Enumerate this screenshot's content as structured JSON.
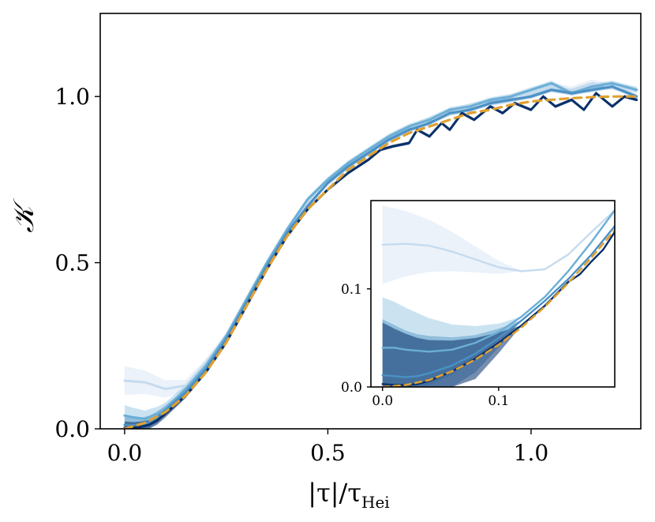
{
  "chart_data": [
    {
      "type": "line",
      "title": "",
      "xlabel": {
        "base": "|τ|/τ",
        "subscript": "Hei"
      },
      "ylabel": "𝒦",
      "xlim": [
        -0.06,
        1.27
      ],
      "ylim": [
        0,
        1.25
      ],
      "xticks": [
        0.0,
        0.5,
        1.0
      ],
      "yticks": [
        0.0,
        0.5,
        1.0
      ],
      "xtick_labels": [
        "0.0",
        "0.5",
        "1.0"
      ],
      "ytick_labels": [
        "0.0",
        "0.5",
        "1.0"
      ],
      "grid": false,
      "legend": "none",
      "series": [
        {
          "color": "#c6dbef",
          "x": [
            0.0,
            0.05,
            0.1,
            0.15,
            0.2,
            0.25,
            0.3,
            0.35,
            0.4,
            0.45,
            0.5,
            0.55,
            0.6,
            0.65,
            0.7,
            0.75,
            0.8,
            0.85,
            0.9,
            0.95,
            1.0,
            1.05,
            1.1,
            1.15,
            1.2,
            1.26
          ],
          "y": [
            0.145,
            0.14,
            0.12,
            0.13,
            0.2,
            0.28,
            0.39,
            0.5,
            0.6,
            0.68,
            0.74,
            0.79,
            0.83,
            0.87,
            0.9,
            0.93,
            0.95,
            0.97,
            0.98,
            0.99,
            1.01,
            1.03,
            1.02,
            1.04,
            1.03,
            1.02
          ]
        },
        {
          "color": "#6baed6",
          "x": [
            0.0,
            0.02,
            0.05,
            0.08,
            0.1,
            0.15,
            0.2,
            0.25,
            0.3,
            0.35,
            0.4,
            0.45,
            0.5,
            0.55,
            0.6,
            0.65,
            0.7,
            0.75,
            0.8,
            0.85,
            0.9,
            0.95,
            1.0,
            1.05,
            1.1,
            1.15,
            1.2,
            1.26
          ],
          "y": [
            0.04,
            0.035,
            0.03,
            0.045,
            0.06,
            0.12,
            0.19,
            0.28,
            0.39,
            0.5,
            0.6,
            0.69,
            0.75,
            0.8,
            0.84,
            0.88,
            0.91,
            0.93,
            0.96,
            0.97,
            0.99,
            1.0,
            1.02,
            1.04,
            1.01,
            1.03,
            1.04,
            1.02
          ]
        },
        {
          "color": "#4a90c4",
          "x": [
            0.0,
            0.02,
            0.04,
            0.06,
            0.08,
            0.1,
            0.15,
            0.2,
            0.25,
            0.3,
            0.35,
            0.4,
            0.45,
            0.5,
            0.55,
            0.6,
            0.65,
            0.7,
            0.75,
            0.8,
            0.85,
            0.9,
            0.95,
            1.0,
            1.05,
            1.1,
            1.15,
            1.2,
            1.26
          ],
          "y": [
            0.012,
            0.01,
            0.012,
            0.02,
            0.035,
            0.055,
            0.11,
            0.18,
            0.27,
            0.38,
            0.49,
            0.59,
            0.67,
            0.74,
            0.79,
            0.83,
            0.87,
            0.9,
            0.92,
            0.95,
            0.96,
            0.98,
            0.99,
            1.0,
            1.02,
            1.01,
            1.02,
            1.03,
            1.0
          ]
        },
        {
          "color": "#08306b",
          "x": [
            0.0,
            0.02,
            0.04,
            0.06,
            0.08,
            0.1,
            0.15,
            0.2,
            0.25,
            0.3,
            0.35,
            0.4,
            0.45,
            0.5,
            0.55,
            0.6,
            0.63,
            0.66,
            0.7,
            0.72,
            0.75,
            0.78,
            0.8,
            0.83,
            0.86,
            0.9,
            0.93,
            0.96,
            1.0,
            1.03,
            1.06,
            1.1,
            1.13,
            1.16,
            1.2,
            1.23,
            1.26
          ],
          "y": [
            0.003,
            0.003,
            0.006,
            0.012,
            0.025,
            0.045,
            0.1,
            0.17,
            0.26,
            0.37,
            0.48,
            0.58,
            0.66,
            0.72,
            0.77,
            0.81,
            0.84,
            0.85,
            0.86,
            0.9,
            0.88,
            0.92,
            0.9,
            0.95,
            0.93,
            0.97,
            0.95,
            0.98,
            0.96,
            1.0,
            0.97,
            0.99,
            0.96,
            1.01,
            0.97,
            1.0,
            0.99
          ]
        },
        {
          "color": "#e0a030",
          "style": "dashed",
          "x": [
            0.0,
            0.05,
            0.1,
            0.15,
            0.2,
            0.25,
            0.3,
            0.35,
            0.4,
            0.45,
            0.5,
            0.55,
            0.6,
            0.65,
            0.7,
            0.75,
            0.8,
            0.85,
            0.9,
            0.95,
            1.0,
            1.05,
            1.1,
            1.15,
            1.2,
            1.26
          ],
          "y": [
            0.0,
            0.018,
            0.05,
            0.1,
            0.17,
            0.26,
            0.37,
            0.48,
            0.58,
            0.66,
            0.72,
            0.78,
            0.82,
            0.86,
            0.89,
            0.91,
            0.93,
            0.95,
            0.96,
            0.975,
            0.985,
            0.99,
            0.995,
            0.998,
            1.0,
            1.0
          ]
        }
      ]
    },
    {
      "type": "line",
      "title": "",
      "xlim": [
        -0.01,
        0.2
      ],
      "ylim": [
        0.0,
        0.19
      ],
      "xticks": [
        0.0,
        0.1
      ],
      "yticks": [
        0.0,
        0.1
      ],
      "xtick_labels": [
        "0.0",
        "0.1"
      ],
      "ytick_labels": [
        "0.0",
        "0.1"
      ],
      "grid": false,
      "legend": "none",
      "series": [
        {
          "color": "#c6dbef",
          "x": [
            0.0,
            0.02,
            0.04,
            0.06,
            0.08,
            0.1,
            0.12,
            0.14,
            0.16,
            0.18,
            0.2
          ],
          "y": [
            0.145,
            0.146,
            0.144,
            0.138,
            0.13,
            0.122,
            0.118,
            0.12,
            0.135,
            0.158,
            0.18
          ]
        },
        {
          "color": "#6baed6",
          "x": [
            0.0,
            0.01,
            0.02,
            0.04,
            0.06,
            0.08,
            0.1,
            0.12,
            0.14,
            0.16,
            0.18,
            0.2
          ],
          "y": [
            0.04,
            0.04,
            0.038,
            0.036,
            0.038,
            0.045,
            0.056,
            0.072,
            0.092,
            0.118,
            0.148,
            0.18
          ]
        },
        {
          "color": "#4a90c4",
          "x": [
            0.0,
            0.01,
            0.02,
            0.03,
            0.04,
            0.06,
            0.08,
            0.1,
            0.12,
            0.14,
            0.16,
            0.18,
            0.2
          ],
          "y": [
            0.012,
            0.011,
            0.01,
            0.011,
            0.014,
            0.022,
            0.034,
            0.05,
            0.068,
            0.088,
            0.11,
            0.135,
            0.164
          ]
        },
        {
          "color": "#08306b",
          "x": [
            0.0,
            0.01,
            0.02,
            0.03,
            0.04,
            0.06,
            0.08,
            0.1,
            0.12,
            0.14,
            0.16,
            0.17,
            0.18,
            0.19,
            0.2
          ],
          "y": [
            0.003,
            0.002,
            0.002,
            0.003,
            0.006,
            0.016,
            0.029,
            0.045,
            0.063,
            0.083,
            0.107,
            0.115,
            0.128,
            0.14,
            0.158
          ]
        },
        {
          "color": "#e0a030",
          "style": "dashed",
          "x": [
            0.0,
            0.02,
            0.04,
            0.06,
            0.08,
            0.1,
            0.12,
            0.14,
            0.16,
            0.18,
            0.2
          ],
          "y": [
            0.0,
            0.002,
            0.007,
            0.016,
            0.028,
            0.043,
            0.061,
            0.082,
            0.106,
            0.132,
            0.16
          ]
        }
      ]
    }
  ]
}
